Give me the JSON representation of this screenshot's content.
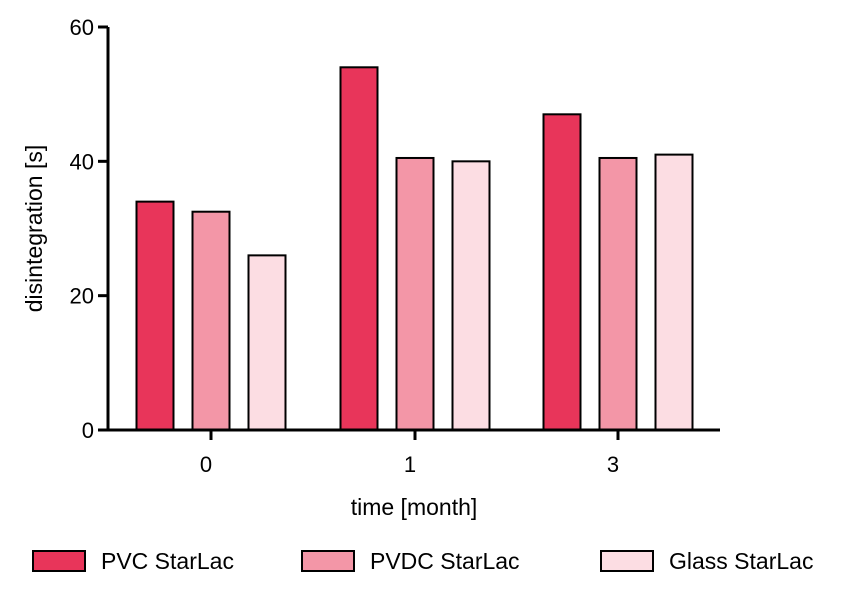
{
  "chart_data": {
    "type": "bar",
    "xlabel": "time [month]",
    "ylabel": "disintegration [s]",
    "categories": [
      "0",
      "1",
      "3"
    ],
    "ylim": [
      0,
      60
    ],
    "yticks": [
      "0",
      "20",
      "40",
      "60"
    ],
    "series": [
      {
        "name": "PVC StarLac",
        "color": "#e8355a",
        "values": [
          34,
          54,
          47
        ]
      },
      {
        "name": "PVDC StarLac",
        "color": "#f396a7",
        "values": [
          32.5,
          40.5,
          40.5
        ]
      },
      {
        "name": "Glass StarLac",
        "color": "#fcdde3",
        "values": [
          26,
          40,
          41
        ]
      }
    ],
    "legend_position": "bottom",
    "grid": false
  }
}
